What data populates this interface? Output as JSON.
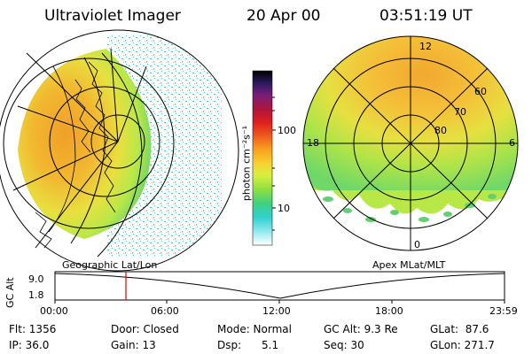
{
  "header": {
    "title": "Ultraviolet Imager",
    "date": "20 Apr 00",
    "time": "03:51:19 UT"
  },
  "left_panel": {
    "label": "Geographic Lat/Lon"
  },
  "right_panel": {
    "label": "Apex MLat/MLT",
    "mlt_labels": {
      "top": "12",
      "left": "18",
      "right": "6",
      "bottom": "0"
    },
    "mlat_labels": [
      "60",
      "70",
      "80"
    ]
  },
  "colorbar": {
    "unit_label": "photon cm⁻²s⁻¹",
    "ticks": [
      "100",
      "10"
    ],
    "colors": [
      "#000000",
      "#2a1a5e",
      "#7a1e7a",
      "#b0143c",
      "#e0201e",
      "#f06020",
      "#f8a020",
      "#f8d030",
      "#d8f040",
      "#90e040",
      "#40d080",
      "#30d0d0",
      "#90e8f0",
      "#e0f4f8",
      "#ffffff"
    ]
  },
  "timeline": {
    "y_label": "GC Alt",
    "y_ticks": [
      "9.0",
      "1.8"
    ],
    "x_ticks": [
      "00:00",
      "06:00",
      "12:00",
      "18:00",
      "23:59"
    ],
    "marker_time": "03:51"
  },
  "info": {
    "flt": "Flt: 1356",
    "ip": "IP: 36.0",
    "door": "Door: Closed",
    "gain": "Gain: 13",
    "mode": "Mode: Normal",
    "dsp": "Dsp:      5.1",
    "gcalt": "GC Alt: 9.3 Re",
    "seq": "Seq: 30",
    "glat": "GLat:  87.6",
    "glon": "GLon: 271.7"
  }
}
